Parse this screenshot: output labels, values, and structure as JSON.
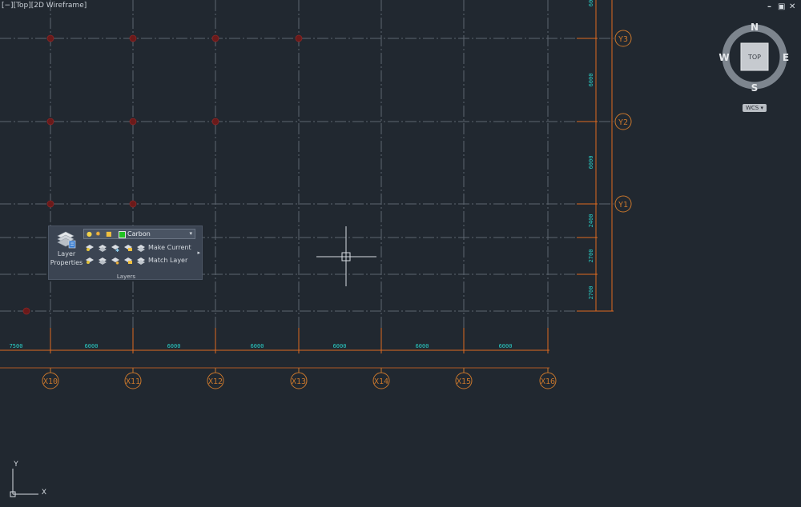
{
  "viewport": {
    "label": "[−][Top][2D Wireframe]",
    "window_controls": [
      "–",
      "▣",
      "✕"
    ]
  },
  "viewcube": {
    "top_face": "TOP",
    "north": "N",
    "south": "S",
    "east": "E",
    "west": "W",
    "ucs_label": "WCS ▾"
  },
  "grid": {
    "column_labels": [
      "X10",
      "X11",
      "X12",
      "X13",
      "X14",
      "X15",
      "X16"
    ],
    "row_labels": [
      "Y3",
      "Y2",
      "Y1"
    ],
    "column_dimensions": [
      "7500",
      "6000",
      "6000",
      "6000",
      "6000",
      "6000",
      "6000"
    ],
    "row_dimensions": [
      "6000",
      "6000",
      "2400",
      "2700",
      "2700"
    ],
    "top_partial_dimension": "60"
  },
  "ucs_icon": {
    "x_label": "X",
    "y_label": "Y"
  },
  "layers_panel": {
    "title": "Layers",
    "properties_label_1": "Layer",
    "properties_label_2": "Properties",
    "current_layer": "Carbon",
    "make_current": "Make Current",
    "match_layer": "Match Layer",
    "expand_arrow": "▸",
    "combo_caret": "▾"
  },
  "colors": {
    "background": "#212830",
    "grid_line": "#5d6670",
    "dimension_line": "#e06a1f",
    "dimension_text": "#2ad0c8",
    "grid_bubble": "#c9772c",
    "column_marker": "#6b1a1a",
    "layer_color": "#22c322"
  }
}
